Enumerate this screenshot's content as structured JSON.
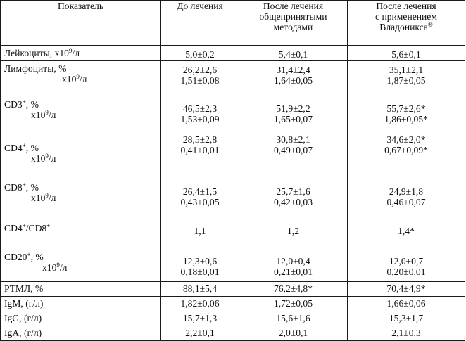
{
  "header": {
    "col1": "Показатель",
    "col2": "До лечения",
    "col3_line1": "После лечения",
    "col3_line2": "общепринятыми",
    "col3_line3": "методами",
    "col4_line1": "После лечения",
    "col4_line2": "с применением",
    "col4_line3": "Владоникса",
    "col4_sup": "®"
  },
  "rows": {
    "leuko": {
      "label": "Лейкоциты,  х10",
      "label_sup": "9",
      "label_tail": "/л",
      "v1": "5,0±0,2",
      "v2": "5,4±0,1",
      "v3": "5,6±0,1"
    },
    "lymph": {
      "label": "Лимфоциты,  %",
      "label2": "х10",
      "label2_sup": "9",
      "label2_tail": "/л",
      "v1a": "26,2±2,6",
      "v1b": "1,51±0,08",
      "v2a": "31,4±2,4",
      "v2b": "1,64±0,05",
      "v3a": "35,1±2,1",
      "v3b": "1,87±0,05"
    },
    "cd3": {
      "label": "CD3",
      "label_sup": "+",
      "label_tail": ", %",
      "label2": "х10",
      "label2_sup": "9",
      "label2_tail": "/л",
      "v1a": "46,5±2,3",
      "v1b": "1,53±0,09",
      "v2a": "51,9±2,2",
      "v2b": "1,65±0,07",
      "v3a": "55,7±2,6*",
      "v3b": "1,86±0,05*"
    },
    "cd4": {
      "label": "CD4",
      "label_sup": "+",
      "label_tail": ", %",
      "label2": "х10",
      "label2_sup": "9",
      "label2_tail": "/л",
      "v1a": "28,5±2,8",
      "v1b": "0,41±0,01",
      "v2a": "30,8±2,1",
      "v2b": "0,49±0,07",
      "v3a": "34,6±2,0*",
      "v3b": "0,67±0,09*"
    },
    "cd8": {
      "label": "CD8",
      "label_sup": "+",
      "label_tail": ", %",
      "label2": "х10",
      "label2_sup": "9",
      "label2_tail": "/л",
      "v1a": "26,4±1,5",
      "v1b": "0,43±0,05",
      "v2a": "25,7±1,6",
      "v2b": "0,42±0,03",
      "v3a": "24,9±1,8",
      "v3b": "0,46±0,07"
    },
    "ratio": {
      "label_a": "CD4",
      "sup_a": "+",
      "label_b": "/CD8",
      "sup_b": "+",
      "v1": "1,1",
      "v2": "1,2",
      "v3": "1,4*"
    },
    "cd20": {
      "label": "CD20",
      "label_sup": "+",
      "label_tail": ", %",
      "label2": "х10",
      "label2_sup": "9",
      "label2_tail": "/л",
      "v1a": "12,3±0,6",
      "v1b": "0,18±0,01",
      "v2a": "12,0±0,4",
      "v2b": "0,21±0,01",
      "v3a": "12,0±0,7",
      "v3b": "0,20±0,01"
    },
    "rtml": {
      "label": "РТМЛ, %",
      "v1": "88,1±5,4",
      "v2": "76,2±4,8*",
      "v3": "70,4±4,9*"
    },
    "igm": {
      "label": "IgM, (г/л)",
      "v1": "1,82±0,06",
      "v2": "1,72±0,05",
      "v3": "1,66±0,06"
    },
    "igg": {
      "label": "IgG, (г/л)",
      "v1": "15,7±1,3",
      "v2": "15,6±1,6",
      "v3": "15,3±1,7"
    },
    "iga": {
      "label": "IgA, (г/л)",
      "v1": "2,2±0,1",
      "v2": "2,0±0,1",
      "v3": "2,1±0,3"
    }
  }
}
